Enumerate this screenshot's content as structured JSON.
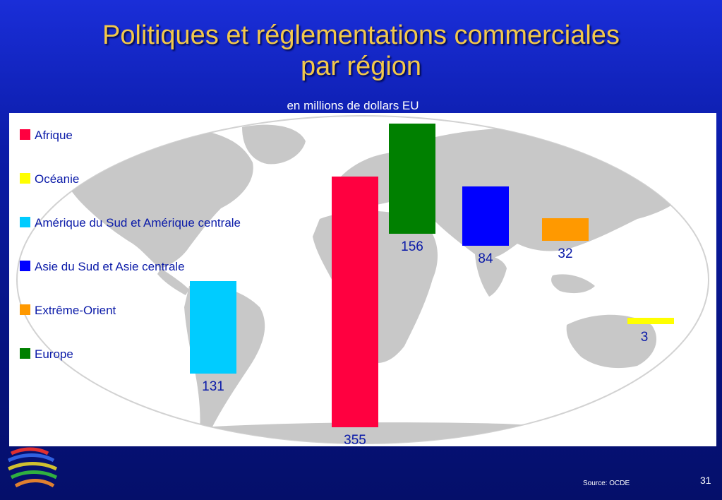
{
  "slide": {
    "title_line1": "Politiques et réglementations commerciales",
    "title_line2": "par région",
    "source": "Source:  OCDE",
    "page_number": "31"
  },
  "chart_data": {
    "type": "bar",
    "title": "Politiques et réglementations commerciales par région",
    "subtitle": "en millions de dollars EU",
    "categories": [
      "Afrique",
      "Océanie",
      "Amérique du Sud et Amérique centrale",
      "Asie du Sud et Asie centrale",
      "Extrême-Orient",
      "Europe"
    ],
    "values": [
      355,
      3,
      131,
      84,
      32,
      156
    ],
    "value_labels": [
      "355",
      "3",
      "131",
      "84",
      "32",
      "156"
    ],
    "colors": [
      "#ff0040",
      "#ffff00",
      "#00ccff",
      "#0000ff",
      "#ff9900",
      "#008000"
    ],
    "legend": [
      {
        "label": "Afrique",
        "color": "#ff0040"
      },
      {
        "label": "Océanie",
        "color": "#ffff00"
      },
      {
        "label": "Amérique du Sud et Amérique centrale",
        "color": "#00ccff"
      },
      {
        "label": "Asie du Sud et Asie centrale",
        "color": "#0000ff"
      },
      {
        "label": "Extrême-Orient",
        "color": "#ff9900"
      },
      {
        "label": "Europe",
        "color": "#008000"
      }
    ],
    "legend_position": "left",
    "background": "world map"
  }
}
